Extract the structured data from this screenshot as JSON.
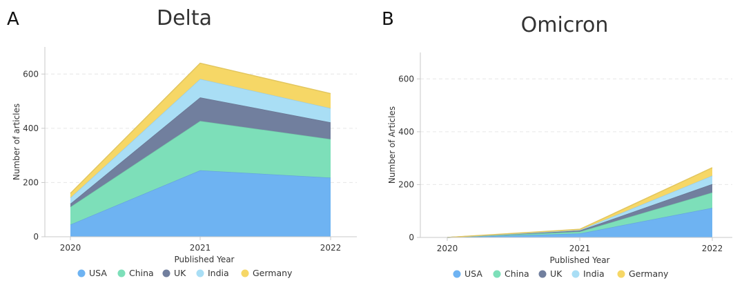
{
  "chart_data": [
    {
      "type": "area",
      "stacked": true,
      "panel_label": "A",
      "title": "Delta",
      "xlabel": "Published Year",
      "ylabel": "Number of articles",
      "x": [
        "2020",
        "2021",
        "2022"
      ],
      "ylim": [
        0,
        700
      ],
      "yticks": [
        "0",
        "200",
        "400",
        "600"
      ],
      "grid": "horizontal-dashed",
      "legend_position": "bottom",
      "series": [
        {
          "name": "USA",
          "color": "#6eb3f2",
          "values": [
            45,
            245,
            218
          ]
        },
        {
          "name": "China",
          "color": "#7ddfb9",
          "values": [
            65,
            182,
            142
          ]
        },
        {
          "name": "UK",
          "color": "#717f9e",
          "values": [
            12,
            87,
            62
          ]
        },
        {
          "name": "India",
          "color": "#a9def5",
          "values": [
            22,
            68,
            52
          ]
        },
        {
          "name": "Germany",
          "color": "#f6d766",
          "values": [
            16,
            58,
            54
          ]
        }
      ]
    },
    {
      "type": "area",
      "stacked": true,
      "panel_label": "B",
      "title": "Omicron",
      "xlabel": "Published Year",
      "ylabel": "Number of Articles",
      "x": [
        "2020",
        "2021",
        "2022"
      ],
      "ylim": [
        0,
        700
      ],
      "yticks": [
        "0",
        "200",
        "400",
        "600"
      ],
      "grid": "horizontal-dashed",
      "legend_position": "bottom",
      "series": [
        {
          "name": "USA",
          "color": "#6eb3f2",
          "values": [
            0,
            15,
            112
          ]
        },
        {
          "name": "China",
          "color": "#7ddfb9",
          "values": [
            0,
            7,
            58
          ]
        },
        {
          "name": "UK",
          "color": "#717f9e",
          "values": [
            0,
            4,
            32
          ]
        },
        {
          "name": "India",
          "color": "#a9def5",
          "values": [
            0,
            2,
            32
          ]
        },
        {
          "name": "Germany",
          "color": "#f6d766",
          "values": [
            0,
            3,
            30
          ]
        }
      ]
    }
  ]
}
